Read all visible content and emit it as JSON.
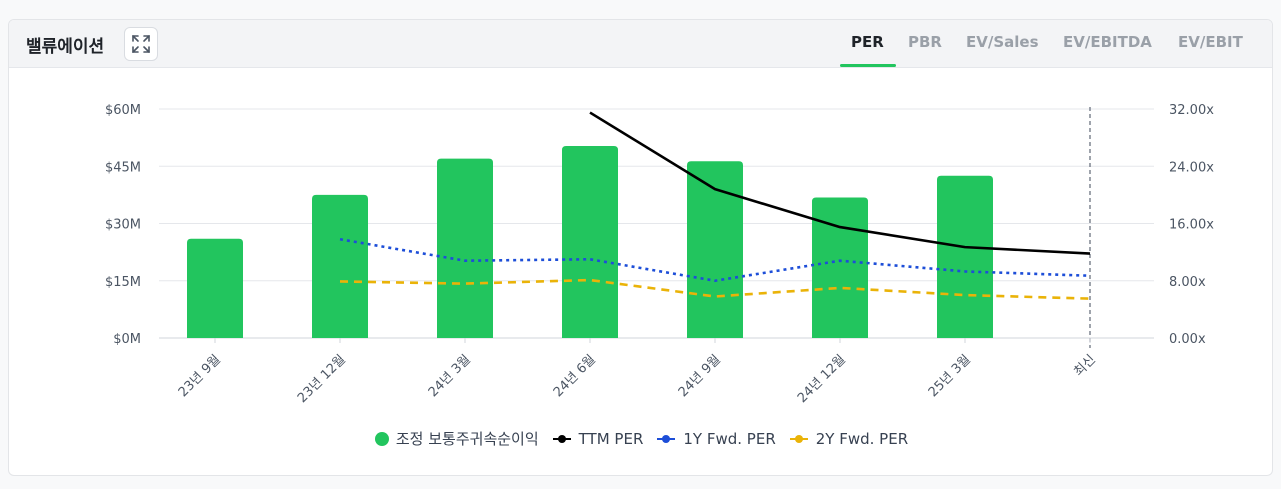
{
  "header": {
    "title": "밸류에이션",
    "expand_icon": "expand-icon",
    "tabs": [
      {
        "label": "PER",
        "active": true
      },
      {
        "label": "PBR",
        "active": false
      },
      {
        "label": "EV/Sales",
        "active": false
      },
      {
        "label": "EV/EBITDA",
        "active": false
      },
      {
        "label": "EV/EBIT",
        "active": false
      }
    ]
  },
  "colors": {
    "bar": "#22c55e",
    "ttm": "#000000",
    "fwd1y": "#1d4ed8",
    "fwd2y": "#eab308",
    "accent": "#22c55e"
  },
  "chart_data": {
    "type": "bar",
    "categories": [
      "23년 9월",
      "23년 12월",
      "24년 3월",
      "24년 6월",
      "24년 9월",
      "24년 12월",
      "25년 3월",
      "최신"
    ],
    "y_left": {
      "ticks": [
        "$0M",
        "$15M",
        "$30M",
        "$45M",
        "$60M"
      ],
      "ylim": [
        0,
        60
      ]
    },
    "y_right": {
      "ticks": [
        "0.00x",
        "8.00x",
        "16.00x",
        "24.00x",
        "32.00x"
      ],
      "ylim": [
        0,
        32
      ]
    },
    "latest_marker": "최신",
    "series": [
      {
        "name": "조정 보통주귀속순이익",
        "type": "bar",
        "axis": "left",
        "values": [
          26,
          37.5,
          47,
          50.3,
          46.3,
          36.8,
          42.5,
          null
        ]
      },
      {
        "name": "TTM PER",
        "type": "line",
        "style": "solid",
        "axis": "right",
        "values": [
          null,
          null,
          null,
          31.5,
          20.8,
          15.5,
          12.7,
          11.8
        ]
      },
      {
        "name": "1Y Fwd. PER",
        "type": "line",
        "style": "dotted",
        "axis": "right",
        "values": [
          null,
          13.8,
          10.8,
          11.0,
          8.0,
          10.8,
          9.3,
          8.7
        ]
      },
      {
        "name": "2Y Fwd. PER",
        "type": "line",
        "style": "dashed",
        "axis": "right",
        "values": [
          null,
          7.9,
          7.6,
          8.1,
          5.8,
          7.0,
          6.0,
          5.5
        ]
      }
    ],
    "grid": true,
    "legend": "bottom"
  }
}
